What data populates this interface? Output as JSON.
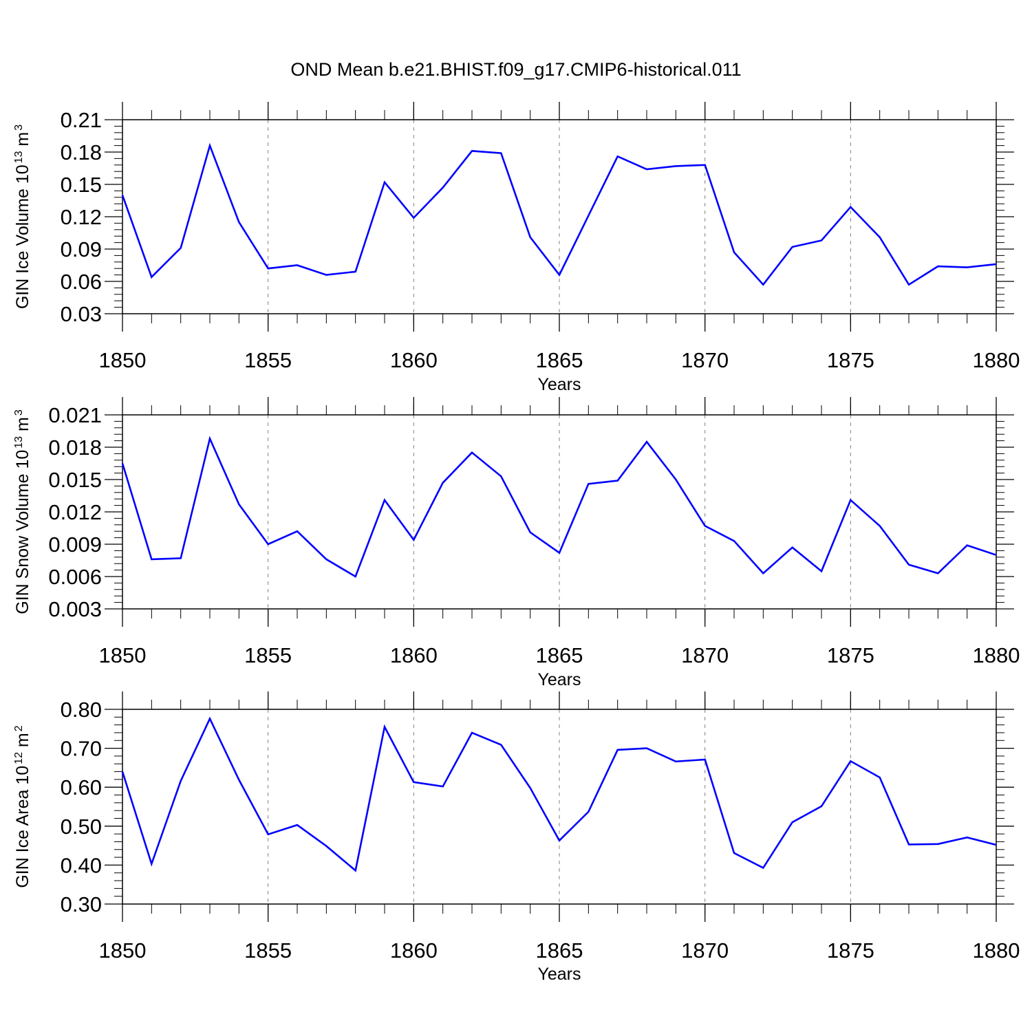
{
  "title": "OND Mean b.e21.BHIST.f09_g17.CMIP6-historical.011",
  "colors": {
    "series": "#0000ff",
    "axes": "#000000",
    "grid": "#7f7f7f"
  },
  "chart_data": [
    {
      "type": "line",
      "ylabel": "GIN Ice Volume 10",
      "ylabel_exp": "13",
      "ylabel_unit": " m",
      "ylabel_unit_exp": "3",
      "xlabel": "Years",
      "xlim": [
        1850,
        1880
      ],
      "ylim": [
        0.03,
        0.21
      ],
      "xticks": [
        "1850",
        "1855",
        "1860",
        "1865",
        "1870",
        "1875",
        "1880"
      ],
      "yticks": [
        "0.03",
        "0.06",
        "0.09",
        "0.12",
        "0.15",
        "0.18",
        "0.21"
      ],
      "grid": "vertical dashed at major x ticks",
      "x": [
        1850,
        1851,
        1852,
        1853,
        1854,
        1855,
        1856,
        1857,
        1858,
        1859,
        1860,
        1861,
        1862,
        1863,
        1864,
        1865,
        1866,
        1867,
        1868,
        1869,
        1870,
        1871,
        1872,
        1873,
        1874,
        1875,
        1876,
        1877,
        1878,
        1879,
        1880
      ],
      "y": [
        0.14,
        0.064,
        0.091,
        0.186,
        0.115,
        0.072,
        0.075,
        0.066,
        0.069,
        0.152,
        0.119,
        0.147,
        0.181,
        0.179,
        0.101,
        0.066,
        0.121,
        0.176,
        0.164,
        0.167,
        0.168,
        0.087,
        0.057,
        0.092,
        0.098,
        0.129,
        0.101,
        0.057,
        0.074,
        0.073,
        0.076
      ]
    },
    {
      "type": "line",
      "ylabel": "GIN Snow Volume 10",
      "ylabel_exp": "13",
      "ylabel_unit": " m",
      "ylabel_unit_exp": "3",
      "xlabel": "Years",
      "xlim": [
        1850,
        1880
      ],
      "ylim": [
        0.003,
        0.021
      ],
      "xticks": [
        "1850",
        "1855",
        "1860",
        "1865",
        "1870",
        "1875",
        "1880"
      ],
      "yticks": [
        "0.003",
        "0.006",
        "0.009",
        "0.012",
        "0.015",
        "0.018",
        "0.021"
      ],
      "grid": "vertical dashed at major x ticks",
      "x": [
        1850,
        1851,
        1852,
        1853,
        1854,
        1855,
        1856,
        1857,
        1858,
        1859,
        1860,
        1861,
        1862,
        1863,
        1864,
        1865,
        1866,
        1867,
        1868,
        1869,
        1870,
        1871,
        1872,
        1873,
        1874,
        1875,
        1876,
        1877,
        1878,
        1879,
        1880
      ],
      "y": [
        0.0165,
        0.0076,
        0.0077,
        0.0188,
        0.0127,
        0.009,
        0.0102,
        0.0076,
        0.006,
        0.0131,
        0.0094,
        0.0147,
        0.0175,
        0.0153,
        0.0101,
        0.0082,
        0.0146,
        0.0149,
        0.0185,
        0.015,
        0.0107,
        0.0093,
        0.0063,
        0.0087,
        0.0065,
        0.0131,
        0.0107,
        0.0071,
        0.0063,
        0.0089,
        0.008
      ]
    },
    {
      "type": "line",
      "ylabel": "GIN Ice Area 10",
      "ylabel_exp": "12",
      "ylabel_unit": " m",
      "ylabel_unit_exp": "2",
      "xlabel": "Years",
      "xlim": [
        1850,
        1880
      ],
      "ylim": [
        0.3,
        0.8
      ],
      "xticks": [
        "1850",
        "1855",
        "1860",
        "1865",
        "1870",
        "1875",
        "1880"
      ],
      "yticks": [
        "0.30",
        "0.40",
        "0.50",
        "0.60",
        "0.70",
        "0.80"
      ],
      "grid": "vertical dashed at major x ticks",
      "x": [
        1850,
        1851,
        1852,
        1853,
        1854,
        1855,
        1856,
        1857,
        1858,
        1859,
        1860,
        1861,
        1862,
        1863,
        1864,
        1865,
        1866,
        1867,
        1868,
        1869,
        1870,
        1871,
        1872,
        1873,
        1874,
        1875,
        1876,
        1877,
        1878,
        1879,
        1880
      ],
      "y": [
        0.64,
        0.403,
        0.616,
        0.776,
        0.619,
        0.479,
        0.503,
        0.449,
        0.386,
        0.755,
        0.613,
        0.602,
        0.74,
        0.709,
        0.598,
        0.463,
        0.537,
        0.696,
        0.7,
        0.666,
        0.671,
        0.431,
        0.393,
        0.51,
        0.551,
        0.667,
        0.625,
        0.453,
        0.454,
        0.471,
        0.452
      ]
    }
  ]
}
